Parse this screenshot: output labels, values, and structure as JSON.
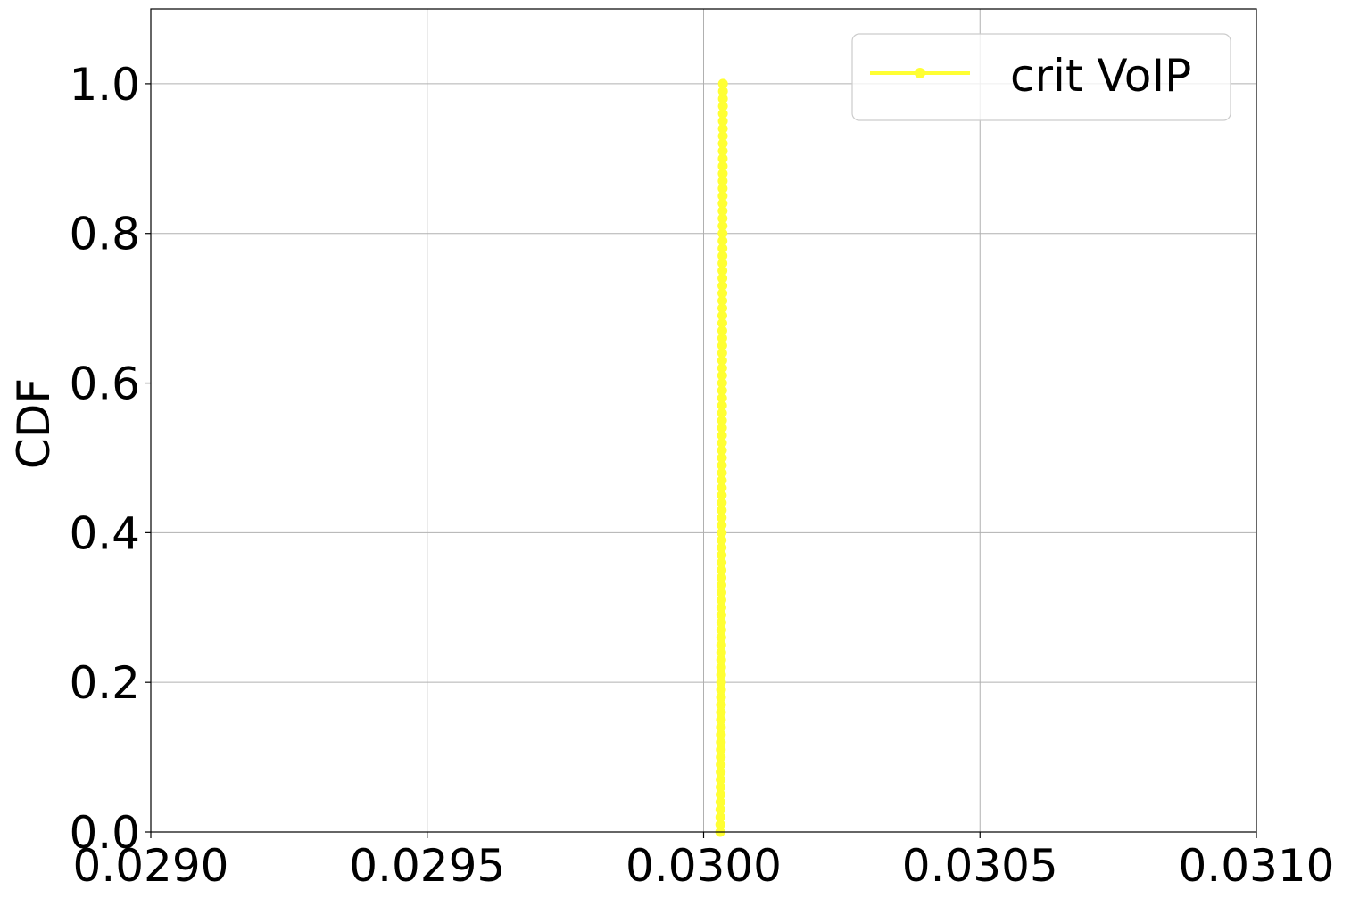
{
  "chart_data": {
    "type": "line",
    "title": "",
    "xlabel": "",
    "ylabel": "CDF",
    "xlim": [
      0.029,
      0.031
    ],
    "ylim": [
      0.0,
      1.1
    ],
    "x_ticks": [
      "0.0290",
      "0.0295",
      "0.0300",
      "0.0305",
      "0.0310"
    ],
    "y_ticks": [
      "0.0",
      "0.2",
      "0.4",
      "0.6",
      "0.8",
      "1.0"
    ],
    "grid": true,
    "legend_position": "top-right",
    "series": [
      {
        "name": "crit VoIP",
        "color": "#ffff33",
        "marker": "circle",
        "x_range": [
          0.03003,
          0.030035
        ],
        "y_range": [
          0.0,
          1.0
        ],
        "points": 101
      }
    ]
  }
}
